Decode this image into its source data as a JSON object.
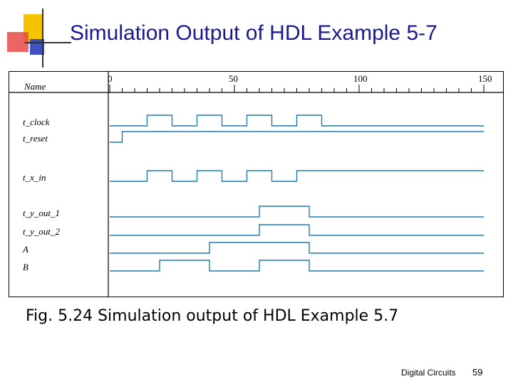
{
  "slide": {
    "title": "Simulation Output of HDL Example 5-7",
    "caption": "Fig. 5.24 Simulation output of HDL Example 5.7",
    "footer": "Digital Circuits",
    "page_number": "59"
  },
  "colors": {
    "title": "#1a1a8c",
    "waveform": "#1f7ab0",
    "logo_yellow": "#f5c400",
    "logo_red": "#e84a4a",
    "logo_blue": "#2a3fbf"
  },
  "simulation": {
    "name_header": "Name",
    "time_labels": [
      "0",
      "50",
      "100",
      "150"
    ],
    "time_values": [
      0,
      50,
      100,
      150
    ],
    "signals": [
      {
        "name": "t_clock",
        "edges": [
          15,
          25,
          35,
          45,
          55,
          65,
          75,
          85
        ],
        "initial": 0
      },
      {
        "name": "t_reset",
        "edges": [
          5
        ],
        "initial": 0
      },
      {
        "name": "t_x_in",
        "edges": [
          15,
          25,
          35,
          45,
          55,
          65,
          75
        ],
        "initial": 0
      },
      {
        "name": "t_y_out_1",
        "edges": [
          60,
          80
        ],
        "initial": 0
      },
      {
        "name": "t_y_out_2",
        "edges": [
          60,
          80
        ],
        "initial": 0
      },
      {
        "name": "A",
        "edges": [
          40,
          80
        ],
        "initial": 0
      },
      {
        "name": "B",
        "edges": [
          20,
          40,
          60,
          80
        ],
        "initial": 0
      }
    ]
  }
}
